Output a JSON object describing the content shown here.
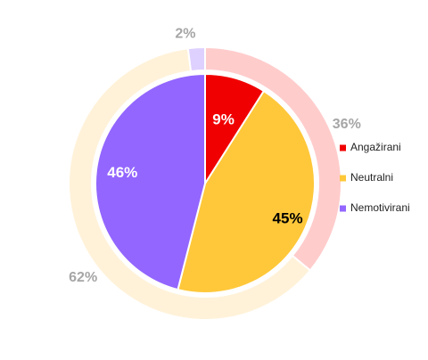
{
  "colors": {
    "engaged": "#f00000",
    "neutral": "#ffc83a",
    "not_motivated": "#9366ff",
    "outer_engaged": "#ffcccc",
    "outer_neutral": "#fff2d9",
    "outer_not_motivated": "#ded0ff",
    "outer_label": "#a6a6a6",
    "inner_label_light": "#ffffff",
    "inner_label_dark": "#000000"
  },
  "chart_data": {
    "type": "pie",
    "title": "",
    "legend_position": "right",
    "inner": {
      "categories": [
        "Angažirani",
        "Neutralni",
        "Nemotivirani"
      ],
      "values": [
        9,
        45,
        46
      ],
      "labels": [
        "9%",
        "45%",
        "46%"
      ]
    },
    "outer": {
      "values": [
        36,
        62,
        2
      ],
      "labels": [
        "36%",
        "62%",
        "2%"
      ]
    },
    "legend": [
      "Angažirani",
      "Neutralni",
      "Nemotivirani"
    ]
  }
}
